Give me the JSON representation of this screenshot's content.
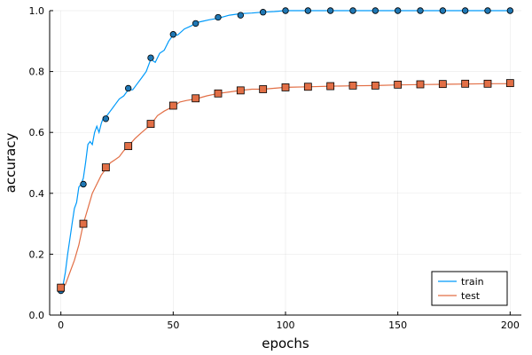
{
  "chart_data": {
    "type": "line",
    "title": "",
    "xlabel": "epochs",
    "ylabel": "accuracy",
    "xlim": [
      -5,
      205
    ],
    "ylim": [
      0,
      1
    ],
    "xticks": [
      0,
      50,
      100,
      150,
      200
    ],
    "yticks": [
      0.0,
      0.2,
      0.4,
      0.6,
      0.8,
      1.0
    ],
    "ytick_labels": [
      "0.0",
      "0.2",
      "0.4",
      "0.6",
      "0.8",
      "1.0"
    ],
    "grid": true,
    "legend_position": "bottom-right",
    "series": [
      {
        "name": "train",
        "color": "#009AFA",
        "marker_color": "#1F77B4",
        "marker": "circle",
        "line_x": [
          0,
          1,
          2,
          3,
          4,
          5,
          6,
          7,
          8,
          9,
          10,
          11,
          12,
          13,
          14,
          15,
          16,
          17,
          18,
          19,
          20,
          22,
          24,
          26,
          28,
          30,
          32,
          34,
          36,
          38,
          40,
          42,
          44,
          46,
          48,
          50,
          52,
          55,
          58,
          60,
          63,
          66,
          70,
          75,
          80,
          85,
          90,
          95,
          100,
          110,
          120,
          130,
          140,
          150,
          160,
          170,
          180,
          190,
          200
        ],
        "line_y": [
          0.08,
          0.1,
          0.14,
          0.2,
          0.25,
          0.3,
          0.35,
          0.37,
          0.42,
          0.43,
          0.45,
          0.5,
          0.56,
          0.57,
          0.56,
          0.6,
          0.62,
          0.6,
          0.63,
          0.65,
          0.65,
          0.67,
          0.69,
          0.71,
          0.72,
          0.74,
          0.74,
          0.76,
          0.78,
          0.8,
          0.84,
          0.83,
          0.86,
          0.87,
          0.9,
          0.92,
          0.92,
          0.94,
          0.95,
          0.96,
          0.965,
          0.97,
          0.975,
          0.985,
          0.99,
          0.992,
          0.995,
          0.997,
          1.0,
          1.0,
          1.0,
          1.0,
          1.0,
          1.0,
          1.0,
          1.0,
          1.0,
          1.0,
          1.0
        ],
        "marker_x": [
          0,
          10,
          20,
          30,
          40,
          50,
          60,
          70,
          80,
          90,
          100,
          110,
          120,
          130,
          140,
          150,
          160,
          170,
          180,
          190,
          200
        ],
        "marker_y": [
          0.08,
          0.43,
          0.645,
          0.745,
          0.845,
          0.922,
          0.958,
          0.978,
          0.985,
          0.995,
          1.0,
          1.0,
          1.0,
          1.0,
          1.0,
          1.0,
          1.0,
          1.0,
          1.0,
          1.0,
          1.0
        ]
      },
      {
        "name": "test",
        "color": "#E26F46",
        "marker_color": "#E26F46",
        "marker": "square",
        "line_x": [
          0,
          2,
          4,
          6,
          8,
          10,
          12,
          14,
          16,
          18,
          20,
          22,
          24,
          26,
          28,
          30,
          33,
          36,
          40,
          43,
          46,
          50,
          53,
          56,
          60,
          65,
          70,
          75,
          80,
          85,
          90,
          100,
          110,
          120,
          130,
          140,
          150,
          160,
          170,
          180,
          190,
          200
        ],
        "line_y": [
          0.09,
          0.1,
          0.14,
          0.18,
          0.23,
          0.3,
          0.35,
          0.4,
          0.43,
          0.46,
          0.48,
          0.5,
          0.51,
          0.52,
          0.54,
          0.555,
          0.58,
          0.6,
          0.625,
          0.655,
          0.67,
          0.685,
          0.7,
          0.705,
          0.71,
          0.72,
          0.728,
          0.733,
          0.738,
          0.742,
          0.742,
          0.748,
          0.75,
          0.752,
          0.753,
          0.754,
          0.756,
          0.757,
          0.758,
          0.759,
          0.76,
          0.76
        ],
        "marker_x": [
          0,
          10,
          20,
          30,
          40,
          50,
          60,
          70,
          80,
          90,
          100,
          110,
          120,
          130,
          140,
          150,
          160,
          170,
          180,
          190,
          200
        ],
        "marker_y": [
          0.09,
          0.3,
          0.485,
          0.555,
          0.628,
          0.688,
          0.712,
          0.728,
          0.738,
          0.742,
          0.748,
          0.75,
          0.752,
          0.754,
          0.754,
          0.757,
          0.758,
          0.759,
          0.76,
          0.76,
          0.762
        ]
      }
    ]
  }
}
